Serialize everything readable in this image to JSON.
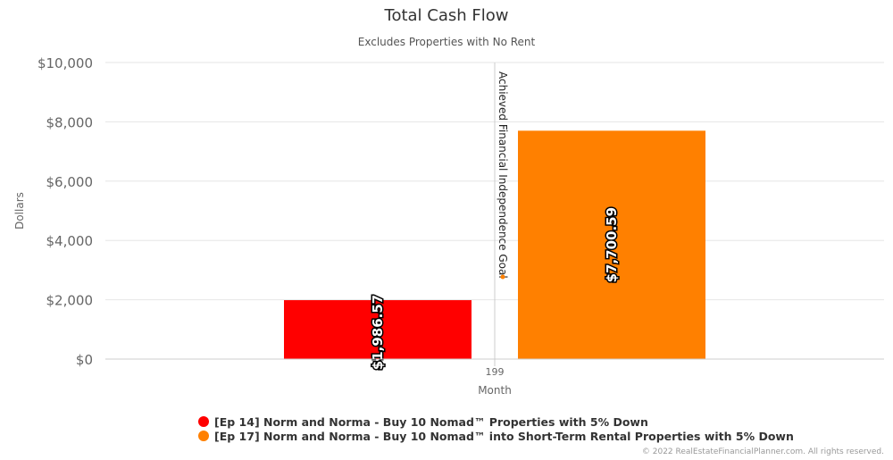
{
  "chart_data": {
    "type": "bar",
    "title": "Total Cash Flow",
    "subtitle": "Excludes Properties with No Rent",
    "xlabel": "Month",
    "ylabel": "Dollars",
    "categories": [
      "199"
    ],
    "ylim": [
      0,
      10000
    ],
    "yticks": [
      "$0",
      "$2,000",
      "$4,000",
      "$6,000",
      "$8,000",
      "$10,000"
    ],
    "ytick_values": [
      0,
      2000,
      4000,
      6000,
      8000,
      10000
    ],
    "series": [
      {
        "name": "[Ep 14] Norm and Norma - Buy 10 Nomad™ Properties with 5% Down",
        "values": [
          1986.57
        ],
        "label": "$1,986.57",
        "color": "#ff0000"
      },
      {
        "name": "[Ep 17] Norm and Norma - Buy 10 Nomad™ into Short-Term Rental Properties with 5% Down",
        "values": [
          7700.59
        ],
        "label": "$7,700.59",
        "color": "#ff8000"
      }
    ],
    "annotation": {
      "text": "Achieved Financial Independence Goal",
      "marker_color": "#ff8000"
    },
    "grid": true,
    "legend_position": "bottom"
  },
  "credits": "© 2022 RealEstateFinancialPlanner.com. All rights reserved."
}
